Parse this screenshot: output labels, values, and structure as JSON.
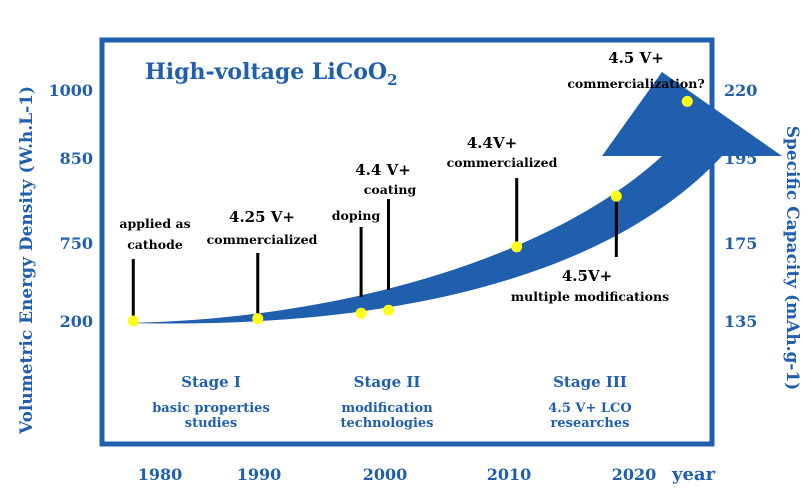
{
  "chart_data": {
    "type": "annotated-timeline",
    "title": "High-voltage LiCoO2",
    "title_main": "High-voltage LiCoO",
    "title_sub": "2",
    "xlabel": "year",
    "ylabel_left": "Volumetric Energy Density  (W.h.L-1)",
    "ylabel_right": "Specific Capacity (mAh.g-1)",
    "x_ticks": [
      "1980",
      "1990",
      "2000",
      "2010",
      "2020"
    ],
    "y_ticks_left": [
      "200",
      "750",
      "850",
      "1000"
    ],
    "y_ticks_right": [
      "135",
      "175",
      "195",
      "220"
    ],
    "milestones": [
      {
        "year": 1979.7,
        "capacity": 135,
        "title": "",
        "lines": [
          "applied as",
          "cathode"
        ]
      },
      {
        "year": 1989.7,
        "capacity": 136.2,
        "title": "4.25 V+",
        "lines": [
          "commercialized"
        ]
      },
      {
        "year": 1998.0,
        "capacity": 139.0,
        "title": "",
        "lines": [
          "doping"
        ]
      },
      {
        "year": 2000.2,
        "capacity": 140.5,
        "title": "4.4 V+",
        "lines": [
          "coating"
        ]
      },
      {
        "year": 2010.5,
        "capacity": 173.0,
        "title": "4.4V+",
        "lines": [
          "commercialized"
        ]
      },
      {
        "year": 2018.5,
        "capacity": 186.0,
        "title": "4.5V+",
        "lines": [
          "multiple modifications"
        ]
      },
      {
        "year": 2024.2,
        "capacity": 215.5,
        "title": "4.5 V+",
        "lines": [
          "commercialization?"
        ]
      }
    ],
    "stages": [
      {
        "name": "Stage I",
        "desc": [
          "basic properties",
          "studies"
        ]
      },
      {
        "name": "Stage II",
        "desc": [
          "modification",
          "technologies"
        ]
      },
      {
        "name": "Stage III",
        "desc": [
          "4.5 V+ LCO",
          "researches"
        ]
      }
    ],
    "colors": {
      "frame": "#1f5fae",
      "arrow": "#1f5fae",
      "point": "#ffff1a"
    }
  }
}
